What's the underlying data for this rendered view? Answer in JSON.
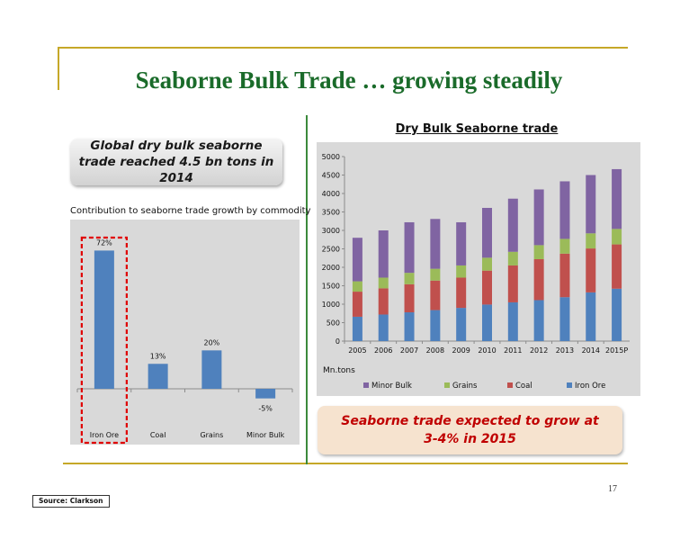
{
  "slide": {
    "title": "Seaborne Bulk Trade … growing steadily",
    "callout_left": "Global dry bulk seaborne trade reached 4.5 bn tons in 2014",
    "callout_right": "Seaborne trade expected to grow at 3-4% in 2015",
    "page_number": "17",
    "source": "Source: Clarkson",
    "colors": {
      "title": "#1a6b2a",
      "frame": "#c6a828",
      "callout_right_text": "#c00000",
      "highlight_box": "#e00000"
    }
  },
  "chart_data": [
    {
      "type": "bar",
      "title": "Contribution to seaborne trade growth by commodity",
      "categories": [
        "Iron Ore",
        "Coal",
        "Grains",
        "Minor Bulk"
      ],
      "values": [
        72,
        13,
        20,
        -5
      ],
      "value_labels": [
        "72%",
        "13%",
        "20%",
        "-5%"
      ],
      "ylim": [
        -10,
        75
      ],
      "grid": false,
      "highlight": "Iron Ore",
      "color": "#4f81bd"
    },
    {
      "type": "bar",
      "stacked": true,
      "title": "Dry Bulk Seaborne trade",
      "ylabel": "Mn.tons",
      "categories": [
        "2005",
        "2006",
        "2007",
        "2008",
        "2009",
        "2010",
        "2011",
        "2012",
        "2013",
        "2014",
        "2015P"
      ],
      "ylim": [
        0,
        5000
      ],
      "yticks": [
        "0",
        "500",
        "1000",
        "1500",
        "2000",
        "2500",
        "3000",
        "3500",
        "4000",
        "4500",
        "5000"
      ],
      "legend_position": "bottom",
      "grid": false,
      "series": [
        {
          "name": "Iron Ore",
          "color": "#4f81bd",
          "values": [
            660,
            720,
            780,
            840,
            900,
            990,
            1050,
            1110,
            1190,
            1320,
            1420
          ]
        },
        {
          "name": "Coal",
          "color": "#c0504d",
          "values": [
            680,
            710,
            760,
            800,
            820,
            920,
            1000,
            1110,
            1180,
            1190,
            1200
          ]
        },
        {
          "name": "Grains",
          "color": "#9bbb59",
          "values": [
            280,
            290,
            310,
            320,
            330,
            350,
            370,
            380,
            400,
            410,
            420
          ]
        },
        {
          "name": "Minor Bulk",
          "color": "#8064a2",
          "values": [
            1180,
            1280,
            1370,
            1350,
            1170,
            1350,
            1440,
            1510,
            1560,
            1580,
            1620
          ]
        }
      ],
      "legend_order": [
        "Minor Bulk",
        "Grains",
        "Coal",
        "Iron Ore"
      ]
    }
  ]
}
